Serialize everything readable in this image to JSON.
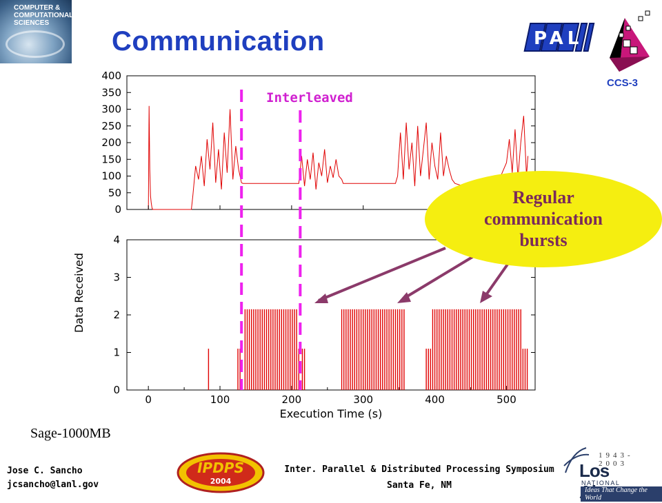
{
  "slide": {
    "title": "Communication",
    "logo_left_text": "COMPUTER & COMPUTATIONAL SCIENCES",
    "logo_pal": "PAL",
    "ccs_label": "CCS-3",
    "workload_label": "Sage-1000MB",
    "author": "Jose C. Sancho",
    "email": "jcsancho@lanl.gov",
    "conference": "Inter. Parallel & Distributed Processing Symposium",
    "location": "Santa Fe, NM",
    "ipdps_logo_text": "IPDPS",
    "ipdps_year": "2004",
    "lanl_years": "1943-2003",
    "lanl_name": "Los Alamos",
    "lanl_lab": "NATIONAL LABORATORY",
    "lanl_tagline": "Ideas That Change the World",
    "callout": [
      "Regular",
      "communication",
      "bursts"
    ],
    "colors": {
      "title": "#1f3fbf",
      "data": "#e00000",
      "marker": "#ee22ee",
      "callout": "#f5ee10",
      "arrow": "#8b3a6a"
    }
  },
  "chart_data": [
    {
      "type": "line",
      "title": "",
      "xlabel": "",
      "ylabel": "",
      "xlim": [
        -30,
        540
      ],
      "ylim": [
        0,
        400
      ],
      "y_ticks": [
        "0",
        "50",
        "100",
        "150",
        "200",
        "250",
        "300",
        "350",
        "400"
      ],
      "annotation": "Interleaved",
      "markers_x": [
        130,
        212
      ],
      "series": [
        {
          "x": [
            0,
            1,
            2,
            3,
            4,
            5,
            6,
            60,
            62,
            66,
            70,
            74,
            78,
            82,
            86,
            90,
            94,
            98,
            102,
            106,
            110,
            114,
            118,
            122,
            126,
            130,
            132,
            210,
            214,
            218,
            222,
            226,
            230,
            234,
            238,
            242,
            246,
            250,
            254,
            258,
            262,
            266,
            270,
            272,
            345,
            348,
            352,
            356,
            360,
            364,
            368,
            372,
            376,
            380,
            384,
            388,
            392,
            396,
            400,
            404,
            408,
            412,
            416,
            420,
            424,
            428,
            440,
            450,
            460,
            470,
            480,
            490,
            500,
            504,
            508,
            512,
            516,
            520,
            524,
            528,
            530
          ],
          "y": [
            0,
            310,
            120,
            40,
            20,
            5,
            0,
            0,
            40,
            130,
            90,
            160,
            70,
            210,
            120,
            260,
            80,
            180,
            60,
            230,
            110,
            300,
            90,
            190,
            120,
            80,
            78,
            78,
            160,
            70,
            150,
            90,
            170,
            60,
            140,
            100,
            180,
            80,
            130,
            95,
            150,
            100,
            90,
            78,
            78,
            100,
            230,
            90,
            260,
            120,
            200,
            70,
            250,
            100,
            180,
            260,
            90,
            200,
            130,
            90,
            230,
            100,
            160,
            120,
            90,
            78,
            70,
            75,
            75,
            78,
            70,
            90,
            140,
            210,
            110,
            240,
            95,
            200,
            280,
            100,
            160
          ]
        }
      ]
    },
    {
      "type": "bar",
      "title": "",
      "xlabel": "Execution Time (s)",
      "ylabel": "Data Received",
      "xlim": [
        -30,
        540
      ],
      "ylim": [
        0,
        4
      ],
      "x_ticks": [
        "0",
        "100",
        "200",
        "300",
        "400",
        "500"
      ],
      "y_ticks": [
        "0",
        "1",
        "2",
        "3",
        "4"
      ],
      "markers_x": [
        130,
        212
      ],
      "series": [
        {
          "x": [
            84,
            125,
            128,
            135,
            138,
            141,
            144,
            147,
            150,
            153,
            156,
            159,
            162,
            165,
            168,
            171,
            174,
            177,
            180,
            183,
            186,
            189,
            192,
            195,
            198,
            201,
            204,
            207,
            210,
            215,
            218,
            270,
            273,
            276,
            279,
            282,
            285,
            288,
            291,
            294,
            297,
            300,
            303,
            306,
            309,
            312,
            315,
            318,
            321,
            324,
            327,
            330,
            333,
            336,
            339,
            342,
            345,
            348,
            351,
            354,
            357,
            388,
            391,
            394,
            397,
            400,
            403,
            406,
            409,
            412,
            415,
            418,
            421,
            424,
            427,
            430,
            433,
            436,
            439,
            442,
            445,
            448,
            451,
            454,
            457,
            460,
            463,
            466,
            469,
            472,
            475,
            478,
            481,
            484,
            487,
            490,
            493,
            496,
            499,
            502,
            505,
            508,
            511,
            514,
            517,
            520,
            523,
            526,
            529
          ],
          "y": [
            1.1,
            1.1,
            1.1,
            2.15,
            2.15,
            2.15,
            2.15,
            2.15,
            2.15,
            2.15,
            2.15,
            2.15,
            2.15,
            2.15,
            2.15,
            2.15,
            2.15,
            2.15,
            2.15,
            2.15,
            2.15,
            2.15,
            2.15,
            2.15,
            2.15,
            2.15,
            2.15,
            2.15,
            1.1,
            1.1,
            1.1,
            2.15,
            2.15,
            2.15,
            2.15,
            2.15,
            2.15,
            2.15,
            2.15,
            2.15,
            2.15,
            2.15,
            2.15,
            2.15,
            2.15,
            2.15,
            2.15,
            2.15,
            2.15,
            2.15,
            2.15,
            2.15,
            2.15,
            2.15,
            2.15,
            2.15,
            2.15,
            2.15,
            2.15,
            2.15,
            2.15,
            1.1,
            1.1,
            1.1,
            2.15,
            2.15,
            2.15,
            2.15,
            2.15,
            2.15,
            2.15,
            2.15,
            2.15,
            2.15,
            2.15,
            2.15,
            2.15,
            2.15,
            2.15,
            2.15,
            2.15,
            2.15,
            2.15,
            2.15,
            2.15,
            2.15,
            2.15,
            2.15,
            2.15,
            2.15,
            2.15,
            2.15,
            2.15,
            2.15,
            2.15,
            2.15,
            2.15,
            2.15,
            2.15,
            2.15,
            2.15,
            2.15,
            2.15,
            2.15,
            2.15,
            2.15,
            1.1,
            1.1,
            1.1
          ]
        }
      ]
    }
  ]
}
